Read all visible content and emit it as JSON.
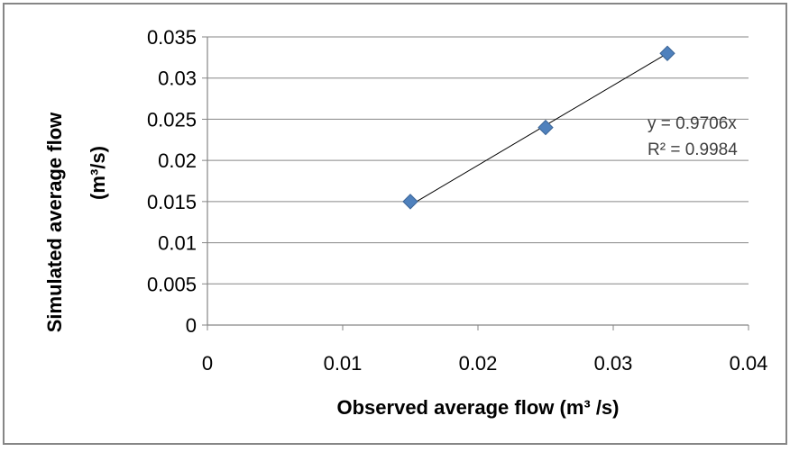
{
  "chart_data": {
    "type": "scatter",
    "xlabel": "Observed  average flow (m³ /s)",
    "ylabel_line1": "Simulated average flow",
    "ylabel_line2": "(m³/s)",
    "xlim": [
      0,
      0.04
    ],
    "ylim": [
      0,
      0.035
    ],
    "x_ticks": [
      0,
      0.01,
      0.02,
      0.03,
      0.04
    ],
    "x_tick_labels": [
      "0",
      "0.01",
      "0.02",
      "0.03",
      "0.04"
    ],
    "y_ticks": [
      0,
      0.005,
      0.01,
      0.015,
      0.02,
      0.025,
      0.03,
      0.035
    ],
    "y_tick_labels": [
      "0",
      "0.005",
      "0.01",
      "0.015",
      "0.02",
      "0.025",
      "0.03",
      "0.035"
    ],
    "grid": "horizontal",
    "legend": "none",
    "points": [
      {
        "x": 0.015,
        "y": 0.015
      },
      {
        "x": 0.025,
        "y": 0.024
      },
      {
        "x": 0.034,
        "y": 0.033
      }
    ],
    "trendline": {
      "slope": 0.9706,
      "x_start": 0.015,
      "x_end": 0.034,
      "equation": "y = 0.9706x",
      "r_squared": "R² = 0.9984"
    },
    "marker_color": "#4F81BD",
    "marker_border_color": "#3A6496",
    "trendline_color": "#000000",
    "gridline_color": "#868686",
    "frame_color": "#868686"
  }
}
